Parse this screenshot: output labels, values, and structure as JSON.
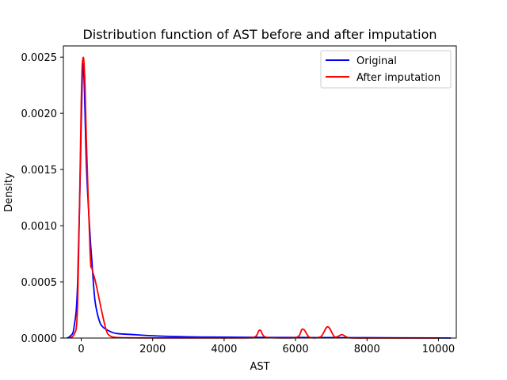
{
  "chart_data": {
    "type": "line",
    "title": "Distribution function of AST before and after imputation",
    "xlabel": "AST",
    "ylabel": "Density",
    "xlim": [
      -500,
      10500
    ],
    "ylim": [
      0,
      0.0026
    ],
    "xticks": [
      0,
      2000,
      4000,
      6000,
      8000,
      10000
    ],
    "xtick_labels": [
      "0",
      "2000",
      "4000",
      "6000",
      "8000",
      "10000"
    ],
    "yticks": [
      0,
      0.0005,
      0.001,
      0.0015,
      0.002,
      0.0025
    ],
    "ytick_labels": [
      "0.0000",
      "0.0005",
      "0.0010",
      "0.0015",
      "0.0020",
      "0.0025"
    ],
    "grid": false,
    "legend_position": "top-right",
    "series": [
      {
        "name": "Original",
        "color": "#0000ff",
        "x": [
          -400,
          -300,
          -200,
          -100,
          0,
          40,
          80,
          150,
          250,
          300,
          350,
          400,
          500,
          600,
          800,
          1000,
          1500,
          2000,
          3000,
          4000,
          5000,
          6000,
          7000,
          8000,
          9000,
          10000,
          10350
        ],
        "y": [
          0,
          2e-05,
          0.0001,
          0.0005,
          0.0019,
          0.0024,
          0.0023,
          0.0015,
          0.0009,
          0.00068,
          0.00045,
          0.0003,
          0.00016,
          0.0001,
          6e-05,
          4e-05,
          3e-05,
          2e-05,
          1e-05,
          8e-06,
          6e-06,
          5e-06,
          4e-06,
          3e-06,
          2e-06,
          1e-06,
          0
        ]
      },
      {
        "name": "After imputation",
        "color": "#ff0000",
        "x": [
          -350,
          -200,
          -100,
          0,
          50,
          100,
          150,
          250,
          300,
          400,
          500,
          600,
          700,
          800,
          1000,
          1500,
          2000,
          3000,
          4000,
          4800,
          5000,
          5200,
          6000,
          6200,
          6400,
          6700,
          6900,
          7100,
          7300,
          7500,
          8000,
          10000
        ],
        "y": [
          0,
          3e-05,
          0.0003,
          0.0021,
          0.00249,
          0.0023,
          0.0017,
          0.00075,
          0.00062,
          0.0005,
          0.00035,
          0.0002,
          7e-05,
          2e-05,
          5e-06,
          2e-06,
          1e-06,
          1e-06,
          1e-06,
          3e-06,
          7e-05,
          5e-06,
          3e-06,
          8e-05,
          5e-06,
          1e-05,
          0.0001,
          1e-05,
          3e-05,
          2e-06,
          5e-07,
          0
        ]
      }
    ]
  }
}
